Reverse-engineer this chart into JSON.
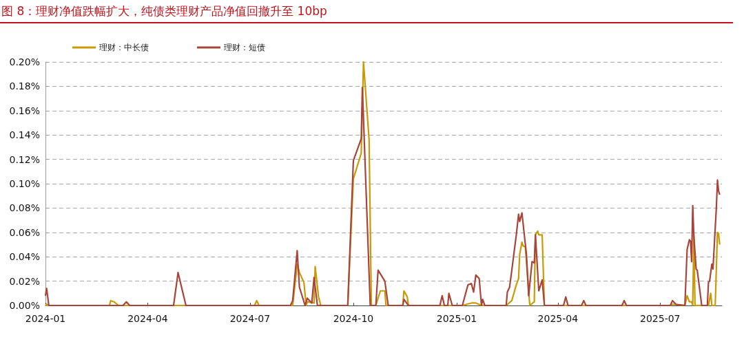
{
  "chart_data": {
    "type": "line",
    "title": "图 8：理财净值跌幅扩大，纯债类理财产品净值回撤升至 10bp",
    "series": [
      {
        "name": "理财：中长债",
        "color": "#c99a06",
        "x": [
          "2024-01-01",
          "2024-01-02",
          "2024-01-04",
          "2024-02-27",
          "2024-02-28",
          "2024-03-02",
          "2024-03-06",
          "2024-07-05",
          "2024-07-07",
          "2024-07-09",
          "2024-08-08",
          "2024-08-12",
          "2024-08-14",
          "2024-08-18",
          "2024-08-20",
          "2024-08-21",
          "2024-08-27",
          "2024-08-28",
          "2024-08-31",
          "2024-09-02",
          "2024-09-26",
          "2024-10-01",
          "2024-10-08",
          "2024-10-10",
          "2024-10-15",
          "2024-10-17",
          "2024-10-21",
          "2024-10-25",
          "2024-10-29",
          "2024-10-30",
          "2024-11-14",
          "2024-11-15",
          "2024-11-18",
          "2024-11-19",
          "2025-01-06",
          "2025-01-14",
          "2025-01-18",
          "2025-01-23",
          "2025-02-14",
          "2025-02-19",
          "2025-02-23",
          "2025-02-25",
          "2025-02-26",
          "2025-02-28",
          "2025-03-01",
          "2025-03-03",
          "2025-03-07",
          "2025-03-11",
          "2025-03-12",
          "2025-03-14",
          "2025-03-15",
          "2025-03-18",
          "2025-03-20",
          "2025-07-10",
          "2025-07-12",
          "2025-07-23",
          "2025-07-25",
          "2025-07-27",
          "2025-07-29",
          "2025-07-30",
          "2025-07-31",
          "2025-08-01",
          "2025-08-13",
          "2025-08-15",
          "2025-08-16",
          "2025-08-19",
          "2025-08-21",
          "2025-08-22",
          "2025-08-23"
        ],
        "values": [
          0,
          0.001,
          0,
          0,
          0.004,
          0.003,
          0,
          0,
          0.004,
          0,
          0,
          0.034,
          0.027,
          0.019,
          0,
          0.003,
          0.002,
          0.032,
          0.007,
          0,
          0,
          0.104,
          0.125,
          0.2,
          0.136,
          0,
          0,
          0.012,
          0.012,
          0,
          0,
          0.012,
          0.007,
          0,
          0,
          0.002,
          0.002,
          0,
          0,
          0.004,
          0.017,
          0.022,
          0.042,
          0.052,
          0.049,
          0.048,
          0,
          0.003,
          0.058,
          0.061,
          0.058,
          0.058,
          0,
          0,
          0.001,
          0,
          0.008,
          0.003,
          0.003,
          0,
          0.058,
          0,
          0,
          0.01,
          0,
          0,
          0.06,
          0.059,
          0.05
        ]
      },
      {
        "name": "理财：短债",
        "color": "#a8443a",
        "x": [
          "2024-01-01",
          "2024-01-02",
          "2024-01-04",
          "2024-03-10",
          "2024-03-13",
          "2024-03-16",
          "2024-04-24",
          "2024-04-28",
          "2024-05-05",
          "2024-08-06",
          "2024-08-08",
          "2024-08-12",
          "2024-08-14",
          "2024-08-19",
          "2024-08-21",
          "2024-08-25",
          "2024-08-27",
          "2024-08-30",
          "2024-09-26",
          "2024-10-01",
          "2024-10-08",
          "2024-10-09",
          "2024-10-16",
          "2024-10-21",
          "2024-10-23",
          "2024-10-29",
          "2024-11-01",
          "2024-11-14",
          "2024-11-15",
          "2024-11-19",
          "2024-12-17",
          "2024-12-19",
          "2024-12-21",
          "2024-12-24",
          "2024-12-25",
          "2024-12-28",
          "2025-01-06",
          "2025-01-11",
          "2025-01-14",
          "2025-01-16",
          "2025-01-18",
          "2025-01-21",
          "2025-01-23",
          "2025-01-24",
          "2025-01-26",
          "2025-02-14",
          "2025-02-15",
          "2025-02-17",
          "2025-02-19",
          "2025-02-23",
          "2025-02-25",
          "2025-02-26",
          "2025-02-28",
          "2025-03-04",
          "2025-03-06",
          "2025-03-09",
          "2025-03-11",
          "2025-03-12",
          "2025-03-15",
          "2025-03-18",
          "2025-03-20",
          "2025-04-06",
          "2025-04-08",
          "2025-04-10",
          "2025-04-22",
          "2025-04-24",
          "2025-04-26",
          "2025-05-28",
          "2025-05-30",
          "2025-06-01",
          "2025-07-10",
          "2025-07-12",
          "2025-07-15",
          "2025-07-23",
          "2025-07-25",
          "2025-07-27",
          "2025-07-28",
          "2025-07-29",
          "2025-07-30",
          "2025-07-31",
          "2025-08-02",
          "2025-08-03",
          "2025-08-07",
          "2025-08-12",
          "2025-08-13",
          "2025-08-14",
          "2025-08-16",
          "2025-08-17",
          "2025-08-20",
          "2025-08-21",
          "2025-08-22",
          "2025-08-23"
        ],
        "values": [
          0.008,
          0.014,
          0,
          0,
          0.003,
          0,
          0,
          0.027,
          0,
          0,
          0.004,
          0.045,
          0.015,
          0,
          0.006,
          0.002,
          0.023,
          0,
          0,
          0.119,
          0.137,
          0.179,
          0,
          0,
          0.029,
          0.02,
          0,
          0,
          0.005,
          0,
          0,
          0.008,
          0,
          0,
          0.01,
          0,
          0,
          0.017,
          0.018,
          0.011,
          0.025,
          0.022,
          0,
          0.005,
          0,
          0,
          0.011,
          0.015,
          0.029,
          0.058,
          0.075,
          0.069,
          0.076,
          0.042,
          0.008,
          0.036,
          0.035,
          0.058,
          0.012,
          0.021,
          0,
          0,
          0.007,
          0,
          0,
          0.004,
          0,
          0,
          0.004,
          0,
          0,
          0.004,
          0.001,
          0,
          0.046,
          0.054,
          0.053,
          0.036,
          0.082,
          0.057,
          0.03,
          0.029,
          0,
          0,
          0.019,
          0.02,
          0.034,
          0.03,
          0.08,
          0.103,
          0.094,
          0.091
        ]
      }
    ],
    "xlim": [
      "2024-01-01",
      "2025-08-25"
    ],
    "xticks": [
      "2024-01",
      "2024-04",
      "2024-07",
      "2024-10",
      "2025-01",
      "2025-04",
      "2025-07"
    ],
    "ylim": [
      0,
      0.2
    ],
    "yticks": [
      {
        "value": 0,
        "label": "0.00%"
      },
      {
        "value": 0.02,
        "label": "0.02%"
      },
      {
        "value": 0.04,
        "label": "0.04%"
      },
      {
        "value": 0.06,
        "label": "0.06%"
      },
      {
        "value": 0.08,
        "label": "0.08%"
      },
      {
        "value": 0.1,
        "label": "0.10%"
      },
      {
        "value": 0.12,
        "label": "0.12%"
      },
      {
        "value": 0.14,
        "label": "0.14%"
      },
      {
        "value": 0.16,
        "label": "0.16%"
      },
      {
        "value": 0.18,
        "label": "0.18%"
      },
      {
        "value": 0.2,
        "label": "0.20%"
      }
    ],
    "grid": "y",
    "legend": "top"
  }
}
